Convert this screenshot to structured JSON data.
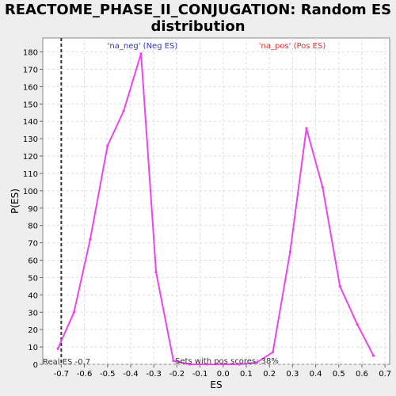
{
  "chart_data": {
    "type": "line",
    "title_lines": [
      "REACTOME_PHASE_II_CONJUGATION: Random ES",
      "distribution"
    ],
    "xlabel": "ES",
    "ylabel": "P(ES)",
    "xlim": [
      -0.78,
      0.72
    ],
    "ylim": [
      0,
      188
    ],
    "x_ticks": [
      -0.7,
      -0.6,
      -0.5,
      -0.4,
      -0.3,
      -0.2,
      -0.1,
      0.0,
      0.1,
      0.2,
      0.3,
      0.4,
      0.5,
      0.6,
      0.7
    ],
    "x_tick_labels": [
      "-0.7",
      "-0.6",
      "-0.5",
      "-0.4",
      "-0.3",
      "-0.2",
      "-0.1",
      "0.0",
      "0.1",
      "0.2",
      "0.3",
      "0.4",
      "0.5",
      "0.6",
      "0.7"
    ],
    "y_ticks": [
      0,
      10,
      20,
      30,
      40,
      50,
      60,
      70,
      80,
      90,
      100,
      110,
      120,
      130,
      140,
      150,
      160,
      170,
      180
    ],
    "y_tick_labels": [
      "0",
      "10",
      "20",
      "30",
      "40",
      "50",
      "60",
      "70",
      "80",
      "90",
      "100",
      "110",
      "120",
      "130",
      "140",
      "150",
      "160",
      "170",
      "180"
    ],
    "grid": true,
    "series_color": "#ee44ee",
    "series": [
      {
        "x": [
          -0.715,
          -0.645,
          -0.575,
          -0.5,
          -0.43,
          -0.355,
          -0.29,
          -0.215,
          -0.145,
          -0.07,
          0.0,
          0.07,
          0.145,
          0.215,
          0.29,
          0.36,
          0.43,
          0.505,
          0.58,
          0.65
        ],
        "y": [
          9,
          30,
          72,
          126,
          146,
          179,
          53,
          2,
          0,
          0,
          0,
          0,
          1,
          7,
          65,
          136,
          102,
          45,
          23,
          5
        ]
      }
    ],
    "annotations": {
      "neg_label": "'na_neg' (Neg ES)",
      "neg_color": "#3333cc",
      "pos_label": "'na_pos' (Pos ES)",
      "pos_color": "#dd3333",
      "pos_scores_label": "Sets with pos scores: 38%",
      "real_es_label": "Real ES -0.7",
      "real_es_value": -0.7
    }
  }
}
